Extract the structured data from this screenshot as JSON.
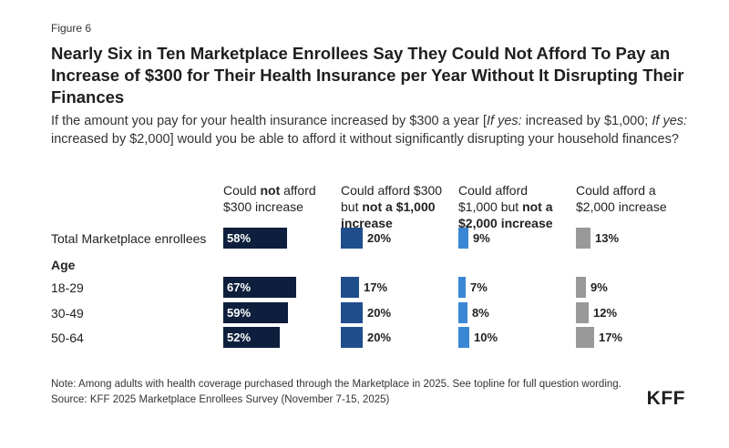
{
  "figure_label": "Figure 6",
  "title": "Nearly Six in Ten Marketplace Enrollees Say They Could Not Afford To Pay an Increase of $300 for Their Health Insurance per Year Without It Disrupting Their Finances",
  "subtitle_parts": [
    "If the amount you pay for your health insurance increased by $300 a year [",
    "If yes:",
    " increased by $1,000; ",
    "If yes:",
    " increased by $2,000] would you be able to afford it without significantly disrupting your household finances?"
  ],
  "columns": [
    {
      "parts": [
        {
          "t": "Could ",
          "b": false
        },
        {
          "t": "not",
          "b": true
        },
        {
          "t": " afford $300 increase",
          "b": false
        }
      ],
      "color": "#0d1f3c"
    },
    {
      "parts": [
        {
          "t": "Could afford $300 but ",
          "b": false
        },
        {
          "t": "not a $1,000 increase",
          "b": true
        }
      ],
      "color": "#1f4e8c"
    },
    {
      "parts": [
        {
          "t": "Could afford $1,000 but ",
          "b": false
        },
        {
          "t": "not a $2,000 increase",
          "b": true
        }
      ],
      "color": "#3a86d4"
    },
    {
      "parts": [
        {
          "t": "Could afford a $2,000 increase",
          "b": false
        }
      ],
      "color": "#999999"
    }
  ],
  "group_label": "Age",
  "notes": {
    "note": "Note: Among adults with health coverage purchased through the Marketplace in 2025. See topline for full question wording.",
    "source": "Source: KFF 2025 Marketplace Enrollees Survey (November 7-15, 2025)"
  },
  "logo": "KFF",
  "chart_data": {
    "type": "bar",
    "categories": [
      "Total Marketplace enrollees",
      "18-29",
      "30-49",
      "50-64"
    ],
    "series": [
      {
        "name": "Could not afford $300 increase",
        "values": [
          58,
          67,
          59,
          52
        ]
      },
      {
        "name": "Could afford $300 but not a $1,000 increase",
        "values": [
          20,
          17,
          20,
          20
        ]
      },
      {
        "name": "Could afford $1,000 but not a $2,000 increase",
        "values": [
          9,
          7,
          8,
          10
        ]
      },
      {
        "name": "Could afford a $2,000 increase",
        "values": [
          13,
          9,
          12,
          17
        ]
      }
    ],
    "value_labels": [
      [
        "58%",
        "67%",
        "59%",
        "52%"
      ],
      [
        "20%",
        "17%",
        "20%",
        "20%"
      ],
      [
        "9%",
        "7%",
        "8%",
        "10%"
      ],
      [
        "13%",
        "9%",
        "12%",
        "17%"
      ]
    ],
    "unit": "%"
  }
}
